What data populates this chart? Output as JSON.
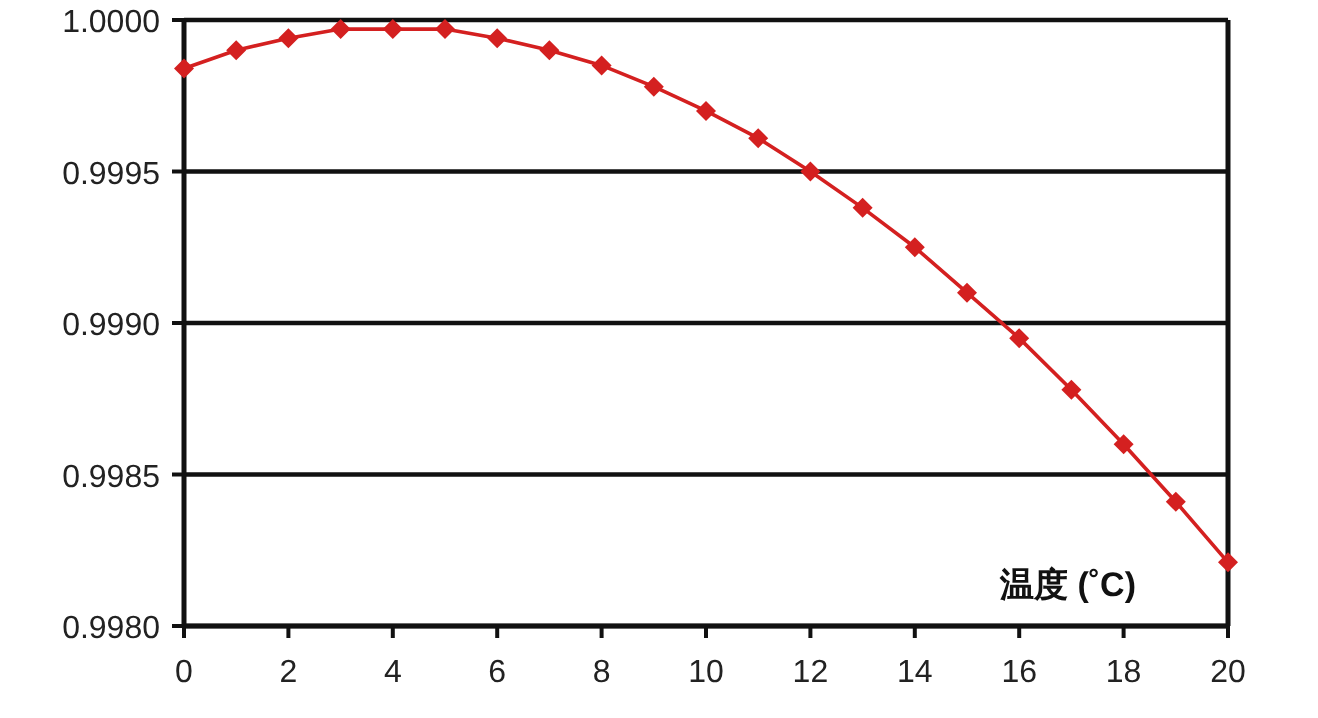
{
  "chart_data": {
    "type": "line",
    "xlabel": "温度 (˚C)",
    "x": [
      0,
      1,
      2,
      3,
      4,
      5,
      6,
      7,
      8,
      9,
      10,
      11,
      12,
      13,
      14,
      15,
      16,
      17,
      18,
      19,
      20
    ],
    "series": [
      {
        "color": "#d42020",
        "values": [
          0.99984,
          0.9999,
          0.99994,
          0.99997,
          0.99997,
          0.99997,
          0.99994,
          0.9999,
          0.99985,
          0.99978,
          0.9997,
          0.99961,
          0.9995,
          0.99938,
          0.99925,
          0.9991,
          0.99895,
          0.99878,
          0.9986,
          0.99841,
          0.99821
        ]
      }
    ],
    "xlim": [
      0,
      20
    ],
    "xticks": [
      0,
      2,
      4,
      6,
      8,
      10,
      12,
      14,
      16,
      18,
      20
    ],
    "ylim": [
      0.998,
      1.0
    ],
    "yticks": [
      {
        "value": 0.998,
        "label": "0.9980"
      },
      {
        "value": 0.9985,
        "label": "0.9985"
      },
      {
        "value": 0.999,
        "label": "0.9990"
      },
      {
        "value": 0.9995,
        "label": "0.9995"
      },
      {
        "value": 1.0,
        "label": "1.0000"
      }
    ],
    "grid": "y",
    "marker": "diamond",
    "line_style": "solid"
  }
}
